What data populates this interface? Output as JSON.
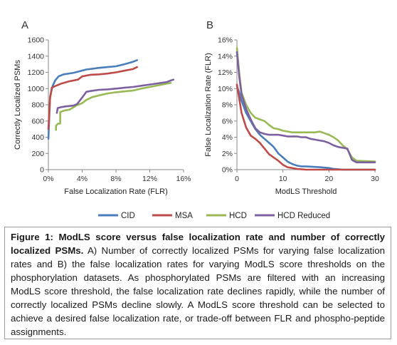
{
  "colors": {
    "CID": "#4a7ebb",
    "MSA": "#be4b48",
    "HCD": "#98b954",
    "HCD Reduced": "#7d60a0"
  },
  "legend": [
    "CID",
    "MSA",
    "HCD",
    "HCD Reduced"
  ],
  "caption": {
    "title": "Figure 1: ModLS score versus false localization rate and number of correctly localized PSMs.",
    "body": " A) Number of correctly localized PSMs for varying false localization rates and B) the false localization rates for varying ModLS score thresholds on the phosphorylation datasets. As phosphorylated PSMs are filtered with an increasing ModLS score threshold, the false localization rate declines rapidly, while the number of correctly localized PSMs decline slowly. A ModLS score threshold can be selected to achieve a desired false localization rate, or trade-off between FLR and phospho-peptide assignments."
  },
  "chart_data": [
    {
      "panel": "A",
      "type": "line",
      "xlabel": "False Localization Rate (FLR)",
      "ylabel": "Correctly Localized PSMs",
      "xlim": [
        0,
        16
      ],
      "ylim": [
        0,
        1600
      ],
      "xticks": [
        0,
        4,
        8,
        12,
        16
      ],
      "xtick_labels": [
        "0%",
        "4%",
        "8%",
        "12%",
        "16%"
      ],
      "yticks": [
        0,
        200,
        400,
        600,
        800,
        1000,
        1200,
        1400,
        1600
      ],
      "ytick_labels": [
        "0",
        "200",
        "400",
        "600",
        "800",
        "1000",
        "1200",
        "1400",
        "1600"
      ],
      "series": [
        {
          "name": "CID",
          "x": [
            0,
            0.2,
            0.5,
            0.8,
            1.2,
            1.8,
            3,
            4.5,
            6,
            7,
            8,
            9,
            10,
            10.5
          ],
          "y": [
            380,
            900,
            1030,
            1100,
            1150,
            1175,
            1195,
            1235,
            1255,
            1265,
            1275,
            1300,
            1330,
            1350
          ]
        },
        {
          "name": "MSA",
          "x": [
            0,
            0.2,
            0.4,
            0.8,
            1.5,
            2.5,
            3.5,
            4,
            5,
            6,
            7,
            8,
            9,
            10,
            10.5
          ],
          "y": [
            500,
            880,
            1010,
            1030,
            1060,
            1090,
            1110,
            1150,
            1170,
            1175,
            1185,
            1200,
            1220,
            1240,
            1265
          ]
        },
        {
          "name": "HCD",
          "x": [
            0.9,
            0.9,
            1.1,
            1.4,
            1.4,
            1.9,
            2.5,
            3,
            3.3,
            4,
            4.5,
            5.2,
            6,
            7,
            8,
            9,
            10,
            11,
            12,
            13,
            14,
            14.5
          ],
          "y": [
            490,
            540,
            565,
            570,
            710,
            730,
            740,
            770,
            790,
            820,
            860,
            895,
            915,
            940,
            955,
            965,
            975,
            1000,
            1020,
            1040,
            1060,
            1070
          ]
        },
        {
          "name": "HCD Reduced",
          "x": [
            1,
            1.1,
            1.5,
            2,
            3,
            3.4,
            4,
            4.5,
            5,
            6,
            7,
            8,
            9,
            10,
            11,
            12,
            13,
            14,
            14.5,
            14.8
          ],
          "y": [
            700,
            760,
            770,
            780,
            790,
            810,
            890,
            960,
            970,
            985,
            990,
            1000,
            1010,
            1020,
            1035,
            1050,
            1065,
            1080,
            1100,
            1110
          ]
        }
      ],
      "legend": "bottom",
      "grid": false
    },
    {
      "panel": "B",
      "type": "line",
      "xlabel": "ModLS Threshold",
      "ylabel": "False Localization Rate (FLR)",
      "xlim": [
        0,
        30
      ],
      "ylim": [
        0,
        16
      ],
      "xticks": [
        0,
        10,
        20,
        30
      ],
      "xtick_labels": [
        "0",
        "10",
        "20",
        "30"
      ],
      "yticks": [
        0,
        2,
        4,
        6,
        8,
        10,
        12,
        14,
        16
      ],
      "ytick_labels": [
        "0%",
        "2%",
        "4%",
        "6%",
        "8%",
        "10%",
        "12%",
        "14%",
        "16%"
      ],
      "series": [
        {
          "name": "CID",
          "x": [
            0,
            0.5,
            1,
            2,
            3,
            4,
            5,
            6,
            7,
            8,
            9,
            10,
            11,
            12,
            13,
            14,
            15,
            18,
            20,
            21,
            22,
            23,
            24,
            30
          ],
          "y": [
            10.3,
            9.5,
            8.5,
            7,
            6,
            5,
            4.3,
            3.8,
            3.3,
            2.8,
            2,
            1.5,
            1,
            0.7,
            0.5,
            0.4,
            0.4,
            0.3,
            0.2,
            0.1,
            0.05,
            0,
            0,
            0
          ]
        },
        {
          "name": "MSA",
          "x": [
            0,
            0.5,
            1,
            2,
            3,
            4,
            5,
            6,
            7,
            8,
            9,
            10,
            11,
            12,
            13,
            14,
            15,
            20,
            25,
            30
          ],
          "y": [
            10.5,
            8.8,
            7,
            5.2,
            4.2,
            3.8,
            3.3,
            2.6,
            1.9,
            1.5,
            1.1,
            0.6,
            0.3,
            0.2,
            0.1,
            0.05,
            0,
            0,
            0,
            0
          ]
        },
        {
          "name": "HCD",
          "x": [
            0,
            0.5,
            1,
            2,
            3,
            4,
            5,
            6,
            7,
            8,
            9,
            10,
            11,
            12,
            13,
            14,
            15,
            16,
            17,
            18,
            19,
            20,
            21,
            22,
            23,
            24,
            25,
            26,
            30
          ],
          "y": [
            15,
            12,
            9.5,
            8,
            7,
            6.4,
            6.2,
            6,
            5.5,
            5.1,
            5,
            4.8,
            4.7,
            4.6,
            4.6,
            4.6,
            4.6,
            4.6,
            4.6,
            4.7,
            4.5,
            4.3,
            4.0,
            3.6,
            3.0,
            2.5,
            1.5,
            1.1,
            1.0
          ]
        },
        {
          "name": "HCD Reduced",
          "x": [
            0,
            0.5,
            1,
            2,
            3,
            4,
            5,
            6,
            7,
            8,
            9,
            10,
            11,
            12,
            13,
            14,
            15,
            16,
            17,
            18,
            19,
            20,
            21,
            22,
            23,
            24,
            25,
            26,
            30
          ],
          "y": [
            14.5,
            11.5,
            9.3,
            7.5,
            6.2,
            5.1,
            4.6,
            4.4,
            4.3,
            4.3,
            4.3,
            4.2,
            4.1,
            4.1,
            4.1,
            4.0,
            4.0,
            3.8,
            3.7,
            3.6,
            3.5,
            3.3,
            3.0,
            2.8,
            2.7,
            2.6,
            1.2,
            0.9,
            0.9
          ]
        }
      ],
      "legend": "bottom",
      "grid": false
    }
  ]
}
